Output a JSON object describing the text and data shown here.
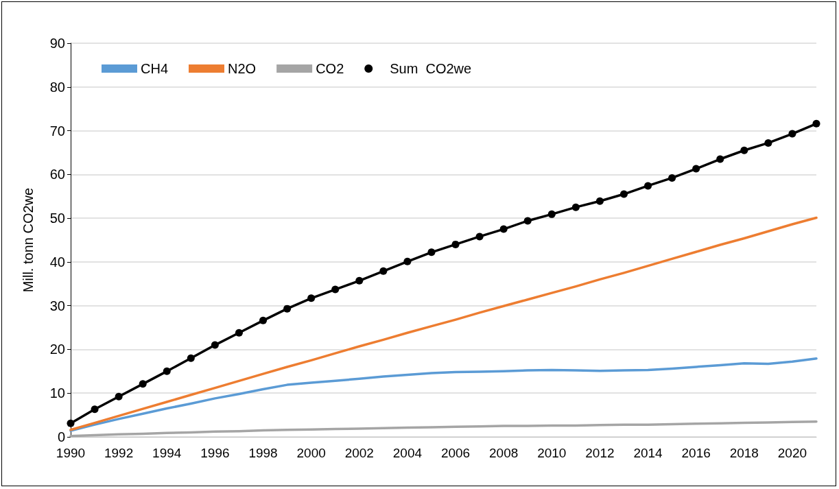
{
  "chart_data": {
    "type": "line",
    "ylabel": "Mill. tonn CO2we",
    "categories": [
      "1990",
      null,
      "1992",
      null,
      "1994",
      null,
      "1996",
      null,
      "1998",
      null,
      "2000",
      null,
      "2002",
      null,
      "2004",
      null,
      "2006",
      null,
      "2008",
      null,
      "2010",
      null,
      "2012",
      null,
      "2014",
      null,
      "2016",
      null,
      "2018",
      null,
      "2020",
      null
    ],
    "series": [
      {
        "name": "CH4",
        "color": "#5b9bd5",
        "marker": "none",
        "values": [
          1.4,
          2.8,
          4.1,
          5.3,
          6.5,
          7.6,
          8.8,
          9.8,
          10.9,
          11.9,
          12.4,
          12.8,
          13.3,
          13.8,
          14.2,
          14.6,
          14.8,
          14.9,
          15.0,
          15.2,
          15.3,
          15.2,
          15.1,
          15.2,
          15.3,
          15.6,
          16.0,
          16.4,
          16.8,
          16.7,
          17.2,
          17.9
        ]
      },
      {
        "name": "N2O",
        "color": "#ed7d31",
        "marker": "none",
        "values": [
          1.6,
          3.2,
          4.8,
          6.4,
          8.0,
          9.6,
          11.2,
          12.8,
          14.4,
          16.0,
          17.5,
          19.1,
          20.7,
          22.2,
          23.8,
          25.3,
          26.8,
          28.4,
          29.9,
          31.4,
          32.9,
          34.4,
          36.0,
          37.5,
          39.1,
          40.7,
          42.3,
          43.9,
          45.4,
          47.0,
          48.6,
          50.1
        ]
      },
      {
        "name": "CO2",
        "color": "#a5a5a5",
        "marker": "none",
        "values": [
          0.2,
          0.4,
          0.6,
          0.7,
          0.9,
          1.0,
          1.2,
          1.3,
          1.5,
          1.6,
          1.7,
          1.8,
          1.9,
          2.0,
          2.1,
          2.2,
          2.3,
          2.4,
          2.5,
          2.5,
          2.6,
          2.6,
          2.7,
          2.8,
          2.8,
          2.9,
          3.0,
          3.1,
          3.2,
          3.3,
          3.4,
          3.5
        ]
      },
      {
        "name": "Sum  CO2we",
        "color": "#000000",
        "marker": "circle",
        "values": [
          3.1,
          6.3,
          9.2,
          12.1,
          15.0,
          18.0,
          21.0,
          23.8,
          26.6,
          29.3,
          31.7,
          33.7,
          35.7,
          37.9,
          40.1,
          42.2,
          44.0,
          45.8,
          47.5,
          49.4,
          50.9,
          52.5,
          53.9,
          55.5,
          57.4,
          59.2,
          61.3,
          63.5,
          65.5,
          67.2,
          69.3,
          71.6
        ]
      }
    ],
    "ylim": [
      0,
      90
    ],
    "yticks": [
      0,
      10,
      20,
      30,
      40,
      50,
      60,
      70,
      80,
      90
    ],
    "grid": "y",
    "legend": "top left",
    "line_style": "solid"
  }
}
